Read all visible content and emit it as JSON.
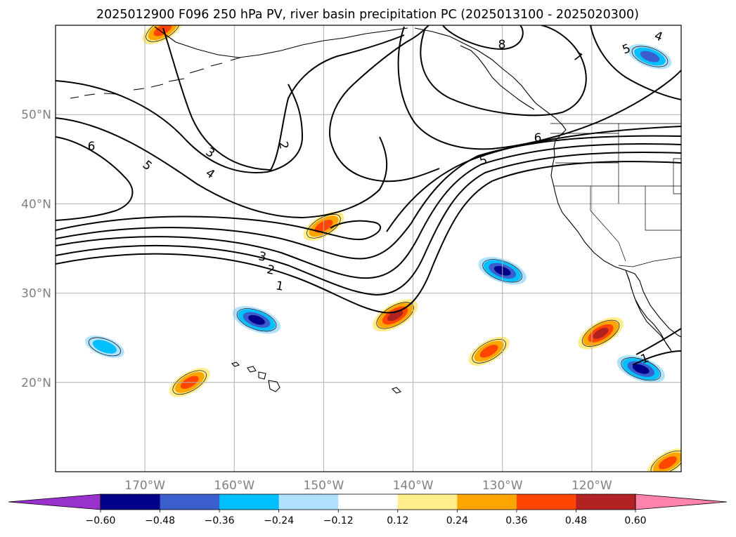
{
  "chart_data": {
    "type": "heatmap",
    "title": "2025012900 F096 250 hPa PV, river basin precipitation PC (2025013100 - 2025020300)",
    "map": {
      "projection": "PlateCarree",
      "lon_range": [
        -180,
        -110
      ],
      "lat_range": [
        10,
        60
      ],
      "grid": true,
      "coastlines": true,
      "borders": true
    },
    "x_ticks": [
      "170°W",
      "160°W",
      "150°W",
      "140°W",
      "130°W",
      "120°W"
    ],
    "x_tick_values": [
      -170,
      -160,
      -150,
      -140,
      -130,
      -120
    ],
    "y_ticks": [
      "20°N",
      "30°N",
      "40°N",
      "50°N"
    ],
    "y_tick_values": [
      20,
      30,
      40,
      50
    ],
    "colorbar": {
      "orientation": "horizontal",
      "extend": "both",
      "levels": [
        -0.6,
        -0.48,
        -0.36,
        -0.24,
        -0.12,
        0.12,
        0.24,
        0.36,
        0.48,
        0.6
      ],
      "tick_labels": [
        "−0.60",
        "−0.48",
        "−0.36",
        "−0.24",
        "−0.12",
        "0.12",
        "0.24",
        "0.36",
        "0.48",
        "0.60"
      ],
      "colors": [
        "#9932cc",
        "#00008b",
        "#3a5fcd",
        "#00bfff",
        "#b0e2ff",
        "#ffffff",
        "#ffec8b",
        "#ffa500",
        "#ff4500",
        "#b22222",
        "#ff82ab"
      ]
    },
    "pv_contours": {
      "variable": "250 hPa PV",
      "labels": [
        "1",
        "2",
        "3",
        "4",
        "5",
        "6",
        "7",
        "8"
      ]
    },
    "precip_pc_features": [
      {
        "lon": -157.5,
        "lat": 27.0,
        "sign": "negative",
        "peak": -0.48
      },
      {
        "lon": -130.0,
        "lat": 32.5,
        "sign": "negative",
        "peak": -0.48
      },
      {
        "lon": -114.5,
        "lat": 21.5,
        "sign": "negative",
        "peak": -0.48
      },
      {
        "lon": -113.5,
        "lat": 56.5,
        "sign": "negative",
        "peak": -0.36
      },
      {
        "lon": -142.0,
        "lat": 27.5,
        "sign": "positive",
        "peak": 0.48
      },
      {
        "lon": -119.0,
        "lat": 25.5,
        "sign": "positive",
        "peak": 0.48
      },
      {
        "lon": -150.0,
        "lat": 37.5,
        "sign": "positive",
        "peak": 0.36
      },
      {
        "lon": -165.0,
        "lat": 20.0,
        "sign": "positive",
        "peak": 0.36
      },
      {
        "lon": -168.0,
        "lat": 59.5,
        "sign": "positive",
        "peak": 0.36
      },
      {
        "lon": -131.5,
        "lat": 23.5,
        "sign": "positive",
        "peak": 0.36
      },
      {
        "lon": -111.5,
        "lat": 11.0,
        "sign": "positive",
        "peak": 0.36
      },
      {
        "lon": -174.5,
        "lat": 24.0,
        "sign": "negative",
        "peak": -0.24
      }
    ]
  }
}
